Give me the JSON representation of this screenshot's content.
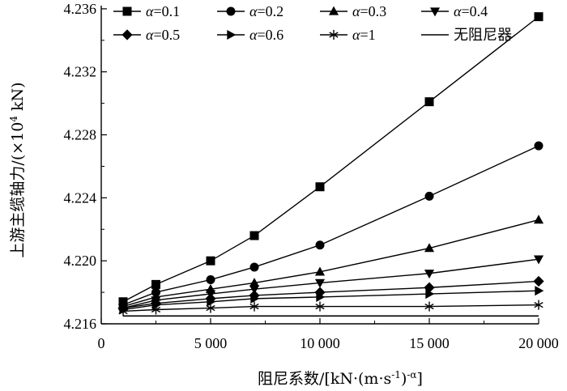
{
  "chart_data": {
    "type": "line",
    "title": "",
    "xlabel": "阻尼系数/[kN·(m·s",
    "xlabel_sup1": "-1",
    "xlabel_mid": ")",
    "xlabel_sup2": "-α",
    "xlabel_end": "]",
    "ylabel": "上游主缆轴力/(×10",
    "ylabel_sup": "4",
    "ylabel_end": " kN)",
    "xlim": [
      0,
      20000
    ],
    "ylim": [
      4.216,
      4.2362
    ],
    "x_ticks": [
      0,
      5000,
      10000,
      15000,
      20000
    ],
    "x_tick_labels": [
      "0",
      "5 000",
      "10 000",
      "15 000",
      "20 000"
    ],
    "y_ticks": [
      4.216,
      4.22,
      4.224,
      4.228,
      4.232,
      4.236
    ],
    "y_tick_labels": [
      "4.216",
      "4.220",
      "4.224",
      "4.228",
      "4.232",
      "4.236"
    ],
    "x": [
      1000,
      2500,
      5000,
      7000,
      10000,
      15000,
      20000
    ],
    "series": [
      {
        "name": "α=0.1",
        "label_prefix": "α",
        "label_suffix": "=0.1",
        "marker": "square",
        "values": [
          4.2174,
          4.2185,
          4.22,
          4.2216,
          4.2247,
          4.2301,
          4.2355
        ]
      },
      {
        "name": "α=0.2",
        "label_prefix": "α",
        "label_suffix": "=0.2",
        "marker": "circle",
        "values": [
          4.2172,
          4.218,
          4.2188,
          4.2196,
          4.221,
          4.2241,
          4.2273
        ]
      },
      {
        "name": "α=0.3",
        "label_prefix": "α",
        "label_suffix": "=0.3",
        "marker": "triangle-up",
        "values": [
          4.2171,
          4.2177,
          4.2182,
          4.2186,
          4.2193,
          4.2208,
          4.2226
        ]
      },
      {
        "name": "α=0.4",
        "label_prefix": "α",
        "label_suffix": "=0.4",
        "marker": "triangle-down",
        "values": [
          4.217,
          4.2175,
          4.2179,
          4.2182,
          4.2186,
          4.2192,
          4.2201
        ]
      },
      {
        "name": "α=0.5",
        "label_prefix": "α",
        "label_suffix": "=0.5",
        "marker": "diamond",
        "values": [
          4.217,
          4.2173,
          4.2176,
          4.2178,
          4.218,
          4.2183,
          4.2187
        ]
      },
      {
        "name": "α=0.6",
        "label_prefix": "α",
        "label_suffix": "=0.6",
        "marker": "triangle-right",
        "values": [
          4.2169,
          4.2172,
          4.2174,
          4.2176,
          4.2177,
          4.2179,
          4.2181
        ]
      },
      {
        "name": "α=1",
        "label_prefix": "α",
        "label_suffix": "=1",
        "marker": "asterisk",
        "values": [
          4.2168,
          4.2169,
          4.217,
          4.2171,
          4.2171,
          4.2171,
          4.2172
        ]
      },
      {
        "name": "无阻尼器",
        "label_prefix": "",
        "label_suffix": "无阻尼器",
        "marker": "none",
        "values": [
          4.2165,
          4.2165,
          4.2165,
          4.2165,
          4.2165,
          4.2165,
          4.2165
        ]
      }
    ],
    "no_damper_line_x": [
      1000,
      20000
    ],
    "legend_position": "top",
    "grid": false,
    "line_color": "#000000"
  }
}
